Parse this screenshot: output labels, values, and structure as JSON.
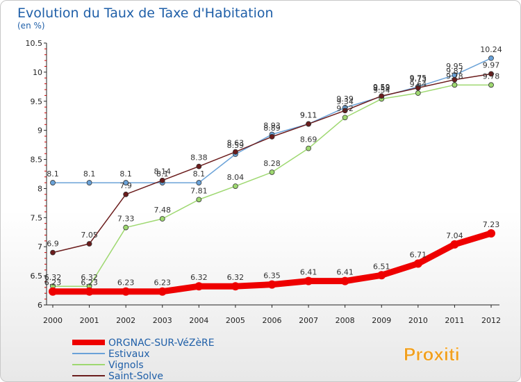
{
  "chart_data": {
    "type": "line",
    "title": "Evolution du Taux de Taxe d'Habitation",
    "subtitle": "(en %)",
    "x": [
      "2000",
      "2001",
      "2002",
      "2003",
      "2004",
      "2005",
      "2006",
      "2007",
      "2008",
      "2009",
      "2010",
      "2011",
      "2012"
    ],
    "ylim": [
      6,
      10.5
    ],
    "yticks": [
      "6",
      "6.5",
      "7",
      "7.5",
      "8",
      "8.5",
      "9",
      "9.5",
      "10",
      "10.5"
    ],
    "grid": false,
    "legend_position": "bottom-left",
    "series": [
      {
        "name": "ORGNAC-SUR-VéZèRE",
        "color": "#ee0000",
        "values": [
          6.23,
          6.23,
          6.23,
          6.23,
          6.32,
          6.32,
          6.35,
          6.41,
          6.41,
          6.51,
          6.71,
          7.04,
          7.23
        ]
      },
      {
        "name": "Estivaux",
        "color": "#6aa2d8",
        "values": [
          8.1,
          8.1,
          8.1,
          8.1,
          8.1,
          8.59,
          8.93,
          9.11,
          9.39,
          9.58,
          9.75,
          9.95,
          10.24
        ]
      },
      {
        "name": "Vignols",
        "color": "#9ed870",
        "values": [
          6.32,
          6.32,
          7.33,
          7.48,
          7.81,
          8.04,
          8.28,
          8.69,
          9.22,
          9.54,
          9.64,
          9.78,
          9.78
        ]
      },
      {
        "name": "Saint-Solve",
        "color": "#6b1c1c",
        "values": [
          6.9,
          7.05,
          7.9,
          8.14,
          8.38,
          8.63,
          8.89,
          9.11,
          9.34,
          9.59,
          9.73,
          9.87,
          9.97
        ]
      }
    ]
  },
  "logo": {
    "text": "Proxiti"
  }
}
